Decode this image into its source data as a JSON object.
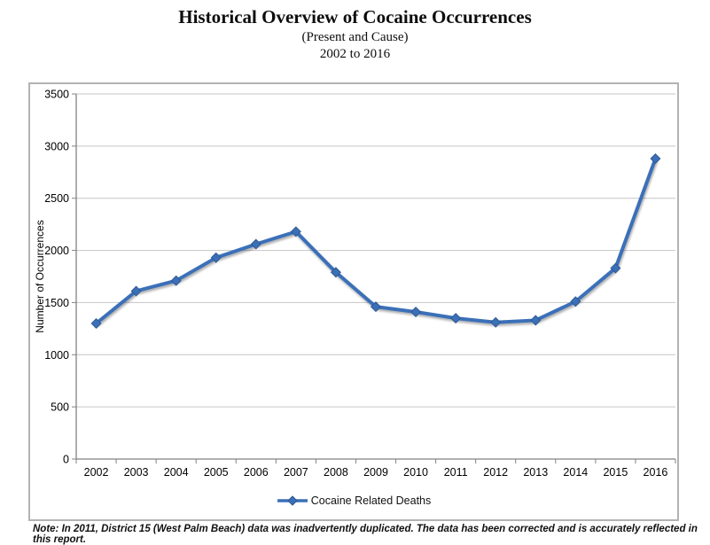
{
  "header": {
    "title": "Historical Overview of Cocaine Occurrences",
    "subtitle": "(Present and Cause)",
    "date_range": "2002 to 2016"
  },
  "chart_data": {
    "type": "line",
    "categories": [
      "2002",
      "2003",
      "2004",
      "2005",
      "2006",
      "2007",
      "2008",
      "2009",
      "2010",
      "2011",
      "2012",
      "2013",
      "2014",
      "2015",
      "2016"
    ],
    "series": [
      {
        "name": "Cocaine Related Deaths",
        "values": [
          1300,
          1610,
          1710,
          1930,
          2060,
          2180,
          1790,
          1460,
          1410,
          1350,
          1310,
          1330,
          1510,
          1830,
          2880
        ],
        "marker": "diamond"
      }
    ],
    "title": "Historical Overview of Cocaine Occurrences",
    "subtitle": "(Present and Cause)",
    "xlabel": "",
    "ylabel": "Number of Occurrences",
    "ylim": [
      0,
      3500
    ],
    "yticks": [
      0,
      500,
      1000,
      1500,
      2000,
      2500,
      3000,
      3500
    ],
    "grid": true,
    "legend_position": "bottom"
  },
  "note": "Note: In 2011, District 15 (West Palm Beach) data was inadvertently duplicated. The data has been corrected and is accurately reflected in this report.",
  "colors": {
    "line": "#3B70B8",
    "marker_edge": "#2C5992",
    "gridline": "#c6c6c6",
    "axis": "#828282",
    "chart_border": "#b3b3b3",
    "text": "#111111"
  }
}
